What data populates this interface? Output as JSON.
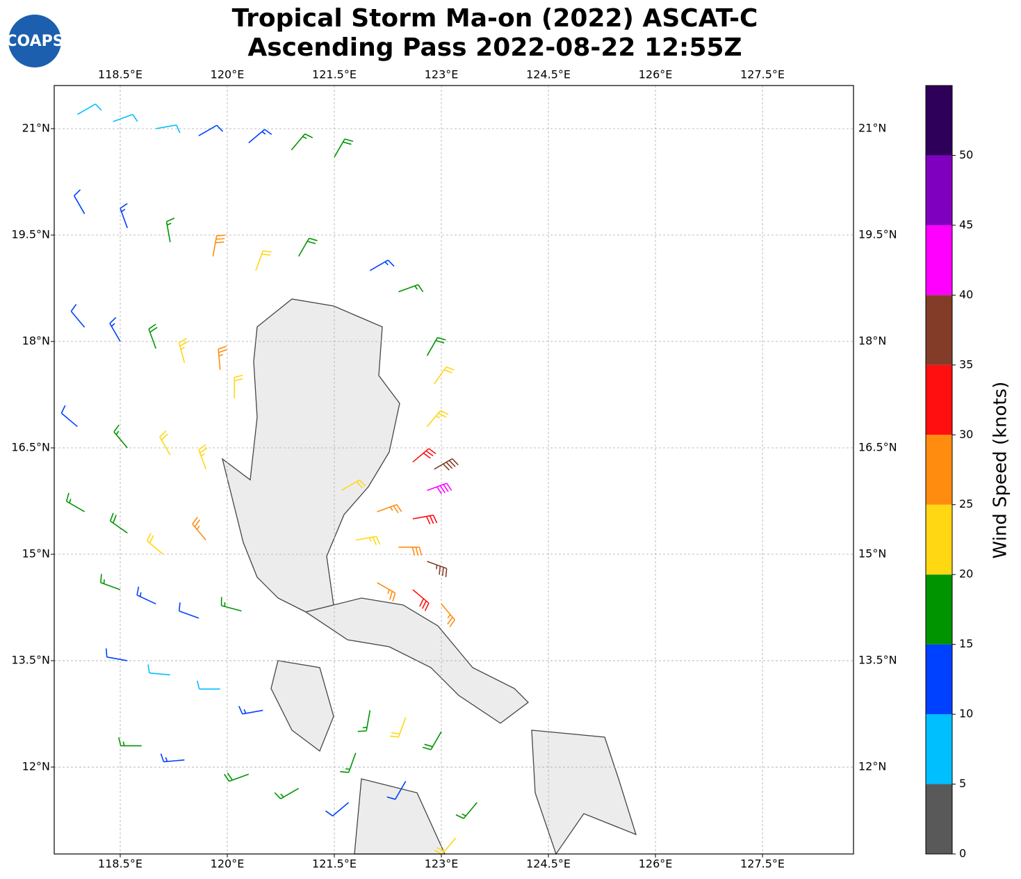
{
  "map": {
    "logo": "COAPS",
    "title": "Tropical Storm Ma-on (2022) ASCAT-C",
    "subtitle": "Ascending Pass 2022-08-22 12:55Z",
    "xlim": [
      117.575,
      128.775
    ],
    "ylim": [
      10.775,
      21.608
    ],
    "xticks": [
      {
        "value": 118.5,
        "label": "118.5°E"
      },
      {
        "value": 120,
        "label": "120°E"
      },
      {
        "value": 121.5,
        "label": "121.5°E"
      },
      {
        "value": 123,
        "label": "123°E"
      },
      {
        "value": 124.5,
        "label": "124.5°E"
      },
      {
        "value": 126,
        "label": "126°E"
      },
      {
        "value": 127.5,
        "label": "127.5°E"
      }
    ],
    "yticks": [
      {
        "value": 12,
        "label": "12°N"
      },
      {
        "value": 13.5,
        "label": "13.5°N"
      },
      {
        "value": 15,
        "label": "15°N"
      },
      {
        "value": 16.5,
        "label": "16.5°N"
      },
      {
        "value": 18,
        "label": "18°N"
      },
      {
        "value": 19.5,
        "label": "19.5°N"
      },
      {
        "value": 21,
        "label": "21°N"
      }
    ],
    "grid": true,
    "colorbar": {
      "label": "Wind Speed (knots)",
      "lim": [
        0,
        55
      ],
      "ticks": [
        0,
        5,
        10,
        15,
        20,
        25,
        30,
        35,
        40,
        45,
        50
      ],
      "colors": [
        "#595959",
        "#00bfff",
        "#0040ff",
        "#009400",
        "#ffd712",
        "#ff8c0f",
        "#ff0f0f",
        "#823c28",
        "#ff00ff",
        "#8000bf",
        "#2e005a"
      ]
    },
    "barbs": [
      [
        117.9,
        21.2,
        8,
        60
      ],
      [
        118.4,
        21.1,
        8,
        70
      ],
      [
        119.0,
        21.0,
        9,
        80
      ],
      [
        119.6,
        20.9,
        12,
        60
      ],
      [
        120.3,
        20.8,
        14,
        50
      ],
      [
        120.9,
        20.7,
        17,
        40
      ],
      [
        121.5,
        20.6,
        18,
        30
      ],
      [
        118.0,
        19.8,
        12,
        330
      ],
      [
        118.6,
        19.6,
        13,
        340
      ],
      [
        119.2,
        19.4,
        17,
        350
      ],
      [
        119.8,
        19.2,
        28,
        10
      ],
      [
        120.4,
        19.0,
        22,
        20
      ],
      [
        121.0,
        19.2,
        18,
        30
      ],
      [
        122.0,
        19.0,
        13,
        60
      ],
      [
        122.4,
        18.7,
        16,
        70
      ],
      [
        118.0,
        18.2,
        12,
        320
      ],
      [
        118.5,
        18.0,
        13,
        330
      ],
      [
        119.0,
        17.9,
        18,
        340
      ],
      [
        119.4,
        17.7,
        23,
        345
      ],
      [
        119.9,
        17.6,
        27,
        355
      ],
      [
        120.1,
        17.2,
        22,
        0
      ],
      [
        117.9,
        16.8,
        12,
        310
      ],
      [
        118.6,
        16.5,
        16,
        320
      ],
      [
        119.2,
        16.4,
        22,
        330
      ],
      [
        119.7,
        16.2,
        24,
        340
      ],
      [
        118.0,
        15.6,
        17,
        300
      ],
      [
        118.6,
        15.3,
        18,
        305
      ],
      [
        119.1,
        15.0,
        22,
        310
      ],
      [
        119.7,
        15.2,
        27,
        320
      ],
      [
        118.5,
        14.5,
        15,
        290
      ],
      [
        119.0,
        14.3,
        14,
        295
      ],
      [
        119.6,
        14.1,
        12,
        290
      ],
      [
        120.2,
        14.2,
        17,
        285
      ],
      [
        118.6,
        13.5,
        11,
        280
      ],
      [
        119.2,
        13.3,
        8,
        275
      ],
      [
        119.9,
        13.1,
        9,
        270
      ],
      [
        120.5,
        12.8,
        14,
        260
      ],
      [
        118.8,
        12.3,
        16,
        270
      ],
      [
        119.4,
        12.1,
        13,
        265
      ],
      [
        120.3,
        11.9,
        18,
        250
      ],
      [
        121.0,
        11.7,
        17,
        240
      ],
      [
        121.7,
        11.5,
        12,
        230
      ],
      [
        122.8,
        17.8,
        18,
        30
      ],
      [
        122.9,
        17.4,
        22,
        35
      ],
      [
        122.8,
        16.8,
        24,
        40
      ],
      [
        122.6,
        16.3,
        32,
        50
      ],
      [
        122.9,
        16.2,
        38,
        60
      ],
      [
        122.8,
        15.9,
        42,
        70
      ],
      [
        121.6,
        15.9,
        22,
        60
      ],
      [
        122.1,
        15.6,
        27,
        70
      ],
      [
        122.6,
        15.5,
        32,
        80
      ],
      [
        121.8,
        15.2,
        24,
        80
      ],
      [
        122.4,
        15.1,
        28,
        90
      ],
      [
        122.8,
        14.9,
        37,
        110
      ],
      [
        122.1,
        14.6,
        27,
        120
      ],
      [
        122.6,
        14.5,
        32,
        130
      ],
      [
        123.0,
        14.3,
        27,
        140
      ],
      [
        122.0,
        12.8,
        15,
        190
      ],
      [
        122.5,
        12.7,
        22,
        200
      ],
      [
        123.0,
        12.5,
        18,
        210
      ],
      [
        123.5,
        11.5,
        17,
        220
      ],
      [
        123.2,
        11.0,
        22,
        220
      ],
      [
        121.8,
        12.2,
        16,
        200
      ],
      [
        122.5,
        11.8,
        12,
        210
      ]
    ]
  }
}
